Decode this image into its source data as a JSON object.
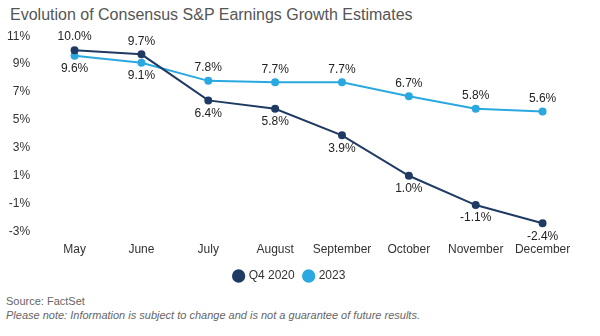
{
  "chart_data": {
    "type": "line",
    "title": "Evolution of Consensus S&P Earnings Growth Estimates",
    "annotations": [
      "Source: FactSet",
      "Please note: Information is subject to change and is not a guarantee of future results."
    ],
    "categories": [
      "May",
      "June",
      "July",
      "August",
      "September",
      "October",
      "November",
      "December"
    ],
    "series": [
      {
        "name": "Q4 2020",
        "color": "#1f3b63",
        "marker": "circle",
        "line_style": "solid",
        "values": [
          10.0,
          9.7,
          6.4,
          5.8,
          3.9,
          1.0,
          -1.1,
          -2.4
        ],
        "value_labels": [
          "10.0%",
          "9.7%",
          "6.4%",
          "5.8%",
          "3.9%",
          "1.0%",
          "-1.1%",
          "-2.4%"
        ]
      },
      {
        "name": "2023",
        "color": "#2aa8e0",
        "marker": "circle",
        "line_style": "solid",
        "values": [
          9.6,
          9.1,
          7.8,
          7.7,
          7.7,
          6.7,
          5.8,
          5.6
        ],
        "value_labels": [
          "9.6%",
          "9.1%",
          "7.8%",
          "7.7%",
          "7.7%",
          "6.7%",
          "5.8%",
          "5.6%"
        ]
      }
    ],
    "ylim": [
      -3,
      11
    ],
    "yticks": [
      {
        "value": -3,
        "label": "-3%"
      },
      {
        "value": -1,
        "label": "-1%"
      },
      {
        "value": 1,
        "label": "1%"
      },
      {
        "value": 3,
        "label": "3%"
      },
      {
        "value": 5,
        "label": "5%"
      },
      {
        "value": 7,
        "label": "7%"
      },
      {
        "value": 9,
        "label": "9%"
      },
      {
        "value": 11,
        "label": "11%"
      }
    ],
    "grid": false,
    "legend": "bottom",
    "data_labels": true
  }
}
